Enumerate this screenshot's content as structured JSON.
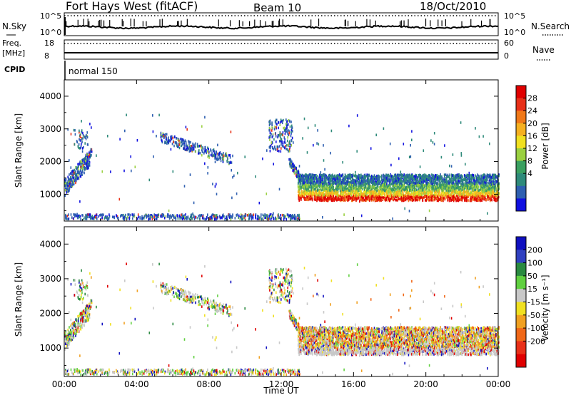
{
  "header": {
    "title": "Fort Hays West (fitACF)",
    "beam": "Beam 10",
    "date": "18/Oct/2010"
  },
  "top_panels": {
    "nsky_label": "N.Sky",
    "nsearch_label": "N.Search",
    "nsky_ticks": [
      "10^5",
      "10^0"
    ],
    "nsearch_ticks": [
      "10^5",
      "10^0"
    ],
    "freq_label_1": "Freq.",
    "freq_label_2": "[MHz]",
    "freq_ticks": [
      "18",
      "8"
    ],
    "nave_label": "Nave",
    "nave_ticks": [
      "60",
      "0"
    ],
    "cpid_label": "CPID",
    "cpid_value": "normal 150"
  },
  "chart_data": [
    {
      "type": "heatmap",
      "panel": "power",
      "ylabel": "Slant Range [km]",
      "yticks": [
        1000,
        2000,
        3000,
        4000
      ],
      "ylim": [
        180,
        4500
      ],
      "colorbar_label": "Power [dB]",
      "colorbar_ticks": [
        4,
        8,
        12,
        16,
        20,
        24,
        28
      ],
      "colorbar_colors": [
        "#1010e0",
        "#2e5fb0",
        "#2e8a7a",
        "#3aa060",
        "#9ad040",
        "#f0e020",
        "#f5b020",
        "#f07818",
        "#e83018",
        "#e00000"
      ]
    },
    {
      "type": "heatmap",
      "panel": "velocity",
      "ylabel": "Slant Range [km]",
      "yticks": [
        1000,
        2000,
        3000,
        4000
      ],
      "ylim": [
        180,
        4500
      ],
      "colorbar_label": "Velocity [m s⁻¹]",
      "colorbar_ticks": [
        200,
        100,
        50,
        15,
        -15,
        -50,
        -100,
        -200
      ],
      "colorbar_colors": [
        "#1010c0",
        "#3040c0",
        "#2a8a40",
        "#60d040",
        "#c8c8c8",
        "#f0e020",
        "#f0a020",
        "#f06818",
        "#e83018",
        "#e00000"
      ],
      "xlabel": "Time UT",
      "xticks": [
        "00:00",
        "04:00",
        "08:00",
        "12:00",
        "16:00",
        "20:00",
        "00:00"
      ]
    }
  ]
}
